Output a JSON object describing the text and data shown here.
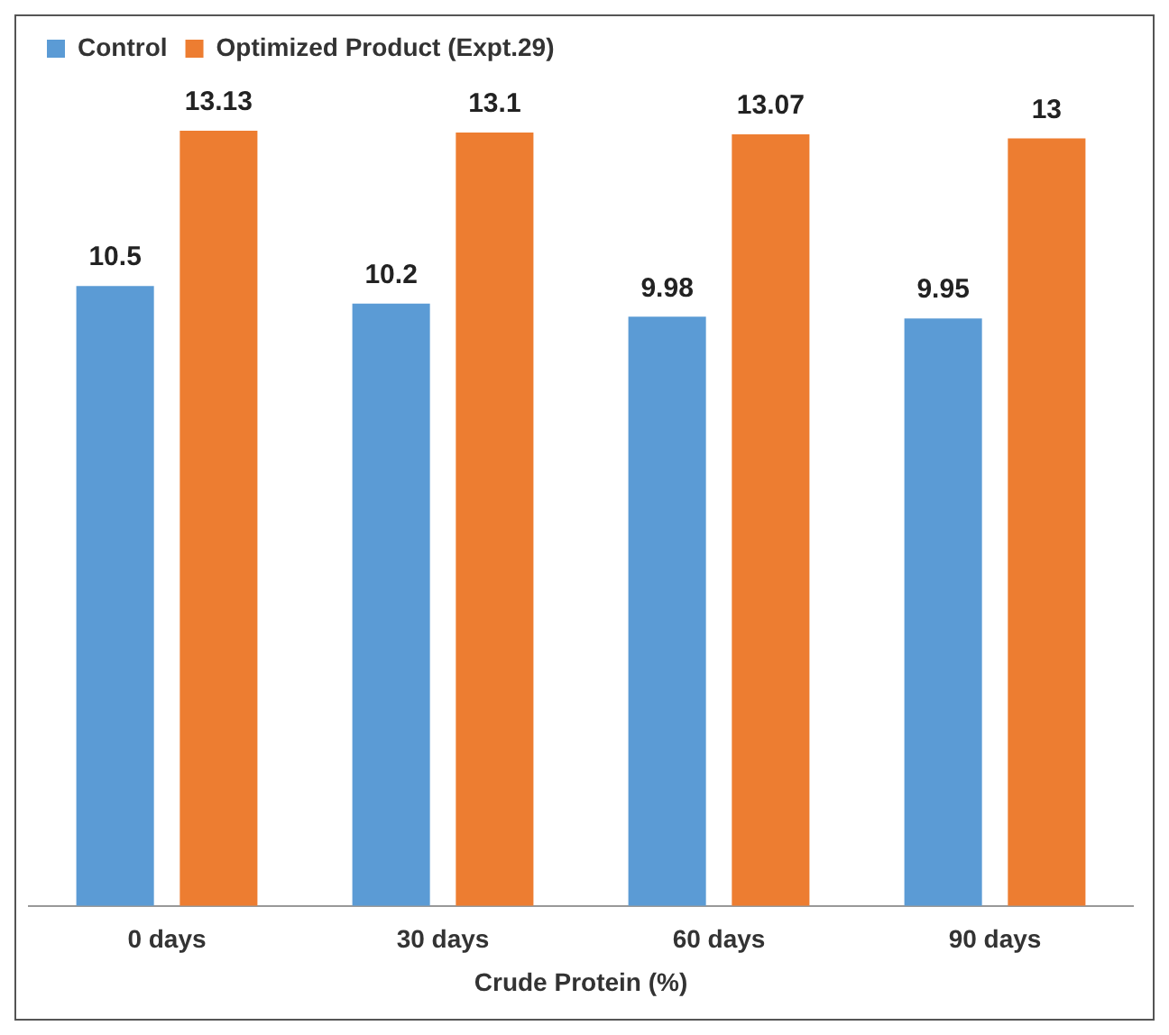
{
  "chart_data": {
    "type": "bar",
    "xlabel": "Crude Protein (%)",
    "categories": [
      "0 days",
      "30 days",
      "60 days",
      "90 days"
    ],
    "series": [
      {
        "name": "Control",
        "color": "#5b9bd5",
        "values": [
          10.5,
          10.2,
          9.98,
          9.95
        ]
      },
      {
        "name": "Optimized Product (Expt.29)",
        "color": "#ed7d31",
        "values": [
          13.13,
          13.1,
          13.07,
          13
        ]
      }
    ],
    "data_labels": true,
    "legend": "top",
    "grid": false
  }
}
